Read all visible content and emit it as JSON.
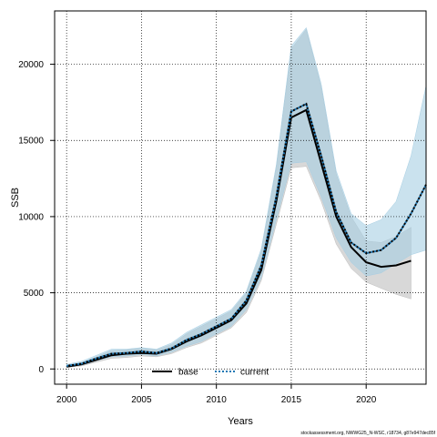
{
  "chart_data": {
    "type": "area",
    "xlabel": "Years",
    "ylabel": "SSB",
    "xlim": [
      1999.2,
      2024
    ],
    "ylim": [
      -1000,
      23500
    ],
    "x_ticks": [
      2000,
      2005,
      2010,
      2015,
      2020
    ],
    "y_ticks": [
      0,
      5000,
      10000,
      15000,
      20000
    ],
    "grid": true,
    "legend_position": "bottom",
    "series": [
      {
        "name": "base",
        "color": "#000000",
        "band_color": "#bebebe",
        "x": [
          2000,
          2001,
          2002,
          2003,
          2004,
          2005,
          2006,
          2007,
          2008,
          2009,
          2010,
          2011,
          2012,
          2013,
          2014,
          2015,
          2016,
          2017,
          2018,
          2019,
          2020,
          2021,
          2022,
          2023
        ],
        "values": [
          150,
          300,
          600,
          900,
          1000,
          1050,
          1000,
          1300,
          1800,
          2200,
          2700,
          3200,
          4300,
          6500,
          11000,
          16500,
          17000,
          13500,
          10000,
          8000,
          7000,
          6700,
          6800,
          7100
        ],
        "lower": [
          100,
          200,
          450,
          700,
          750,
          850,
          800,
          1000,
          1400,
          1700,
          2200,
          2700,
          3700,
          5800,
          9500,
          13200,
          13300,
          11000,
          8200,
          6600,
          5700,
          5300,
          4900,
          4600
        ],
        "upper": [
          200,
          400,
          800,
          1200,
          1250,
          1350,
          1250,
          1600,
          2300,
          2800,
          3300,
          3800,
          5000,
          7700,
          13200,
          21000,
          22300,
          18500,
          12800,
          10000,
          8400,
          8300,
          8700,
          9300
        ]
      },
      {
        "name": "current",
        "color": "#1f78b4",
        "band_color": "#a6cee3",
        "x": [
          2000,
          2001,
          2002,
          2003,
          2004,
          2005,
          2006,
          2007,
          2008,
          2009,
          2010,
          2011,
          2012,
          2013,
          2014,
          2015,
          2016,
          2017,
          2018,
          2019,
          2020,
          2021,
          2022,
          2023,
          2024
        ],
        "values": [
          200,
          350,
          700,
          1000,
          1050,
          1150,
          1050,
          1350,
          1900,
          2300,
          2800,
          3300,
          4500,
          6800,
          11300,
          16900,
          17400,
          14000,
          10300,
          8300,
          7600,
          7800,
          8600,
          10200,
          12100
        ],
        "lower": [
          150,
          250,
          550,
          800,
          850,
          950,
          850,
          1100,
          1500,
          1800,
          2300,
          2800,
          3900,
          6000,
          9800,
          13500,
          13600,
          11300,
          8600,
          7000,
          6100,
          6300,
          6900,
          7500,
          7800
        ],
        "upper": [
          300,
          500,
          900,
          1300,
          1300,
          1400,
          1300,
          1700,
          2400,
          2900,
          3400,
          3900,
          5100,
          7900,
          13400,
          21200,
          22400,
          18700,
          13000,
          10200,
          9400,
          9800,
          11000,
          14000,
          18600
        ]
      }
    ]
  },
  "credit": "stockassessment.org, NWWG25_N-WSC, r18734, g87e947dec85f"
}
